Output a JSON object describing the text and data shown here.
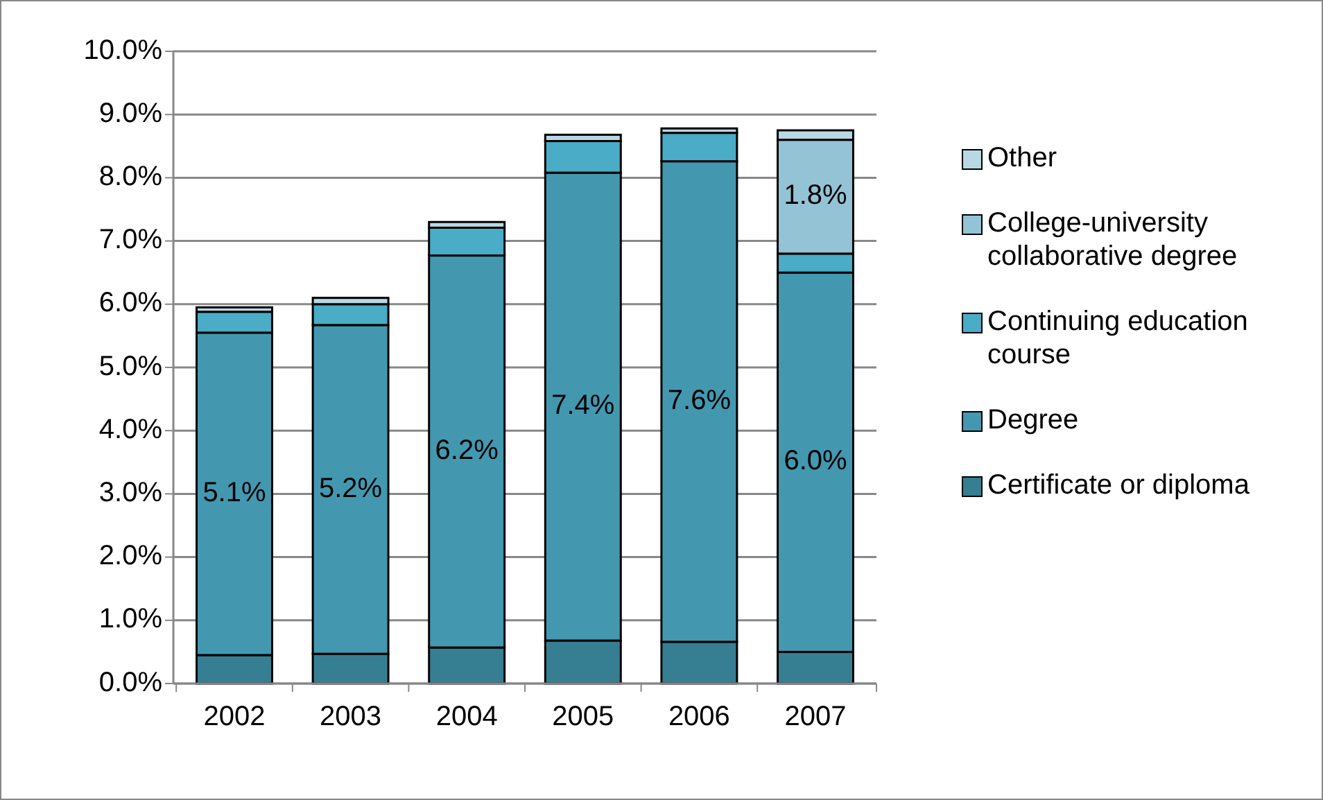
{
  "chart_data": {
    "type": "bar",
    "stacked": true,
    "categories": [
      "2002",
      "2003",
      "2004",
      "2005",
      "2006",
      "2007"
    ],
    "series": [
      {
        "name": "Certificate or diploma",
        "color": "#367f93",
        "values": [
          0.45,
          0.47,
          0.57,
          0.68,
          0.66,
          0.5
        ]
      },
      {
        "name": "Degree",
        "color": "#4398b0",
        "values": [
          5.1,
          5.2,
          6.2,
          7.4,
          7.6,
          6.0
        ],
        "value_labels": [
          "5.1%",
          "5.2%",
          "6.2%",
          "7.4%",
          "7.6%",
          "6.0%"
        ]
      },
      {
        "name": "Continuing education course",
        "color": "#4aacc6",
        "values": [
          0.33,
          0.33,
          0.44,
          0.5,
          0.45,
          0.3
        ]
      },
      {
        "name": "College-university collaborative degree",
        "color": "#93c3d4",
        "values": [
          0,
          0,
          0,
          0,
          0,
          1.8
        ],
        "value_labels": [
          null,
          null,
          null,
          null,
          null,
          "1.8%"
        ]
      },
      {
        "name": "Other",
        "color": "#b9d8e4",
        "values": [
          0.07,
          0.1,
          0.09,
          0.1,
          0.07,
          0.15
        ]
      }
    ],
    "ylim": [
      0,
      10
    ],
    "yticks": [
      {
        "value": 0,
        "label": "0.0%"
      },
      {
        "value": 1,
        "label": "1.0%"
      },
      {
        "value": 2,
        "label": "2.0%"
      },
      {
        "value": 3,
        "label": "3.0%"
      },
      {
        "value": 4,
        "label": "4.0%"
      },
      {
        "value": 5,
        "label": "5.0%"
      },
      {
        "value": 6,
        "label": "6.0%"
      },
      {
        "value": 7,
        "label": "7.0%"
      },
      {
        "value": 8,
        "label": "8.0%"
      },
      {
        "value": 9,
        "label": "9.0%"
      },
      {
        "value": 10,
        "label": "10.0%"
      }
    ],
    "grid": "y",
    "legend": "right"
  }
}
